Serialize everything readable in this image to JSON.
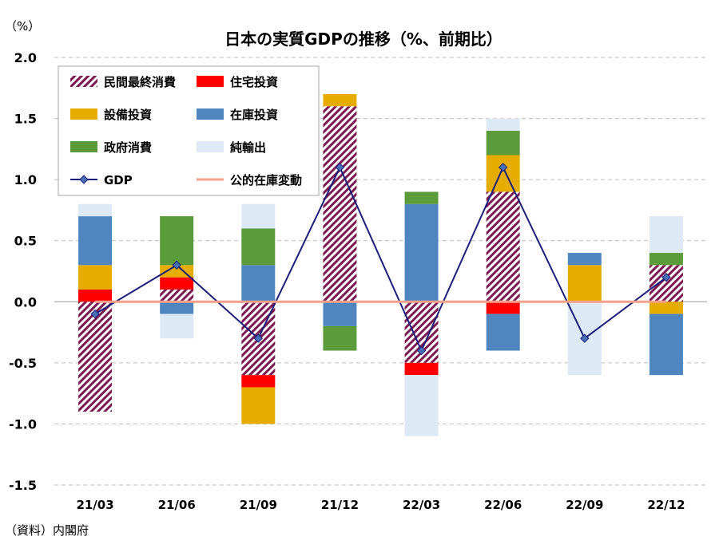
{
  "chart_data": {
    "type": "bar",
    "title": "日本の実質GDPの推移（%、前期比）",
    "yunit": "（%）",
    "source": "（資料）内閣府",
    "ylim": [
      -1.5,
      2.0
    ],
    "yticks": [
      2.0,
      1.5,
      1.0,
      0.5,
      0.0,
      -0.5,
      -1.0,
      -1.5
    ],
    "ytick_labels": [
      "2.0",
      "1.5",
      "1.0",
      "0.5",
      "0.0",
      "-0.5",
      "-1.0",
      "-1.5"
    ],
    "categories": [
      "21/03",
      "21/06",
      "21/09",
      "21/12",
      "22/03",
      "22/06",
      "22/09",
      "22/12"
    ],
    "series": [
      {
        "name": "民間最終消費",
        "type": "stacked-bar",
        "style": "hatch",
        "color": "#7b1a52",
        "values": [
          -0.9,
          0.1,
          -0.6,
          1.6,
          -0.5,
          0.9,
          0.0,
          0.3
        ]
      },
      {
        "name": "住宅投資",
        "type": "stacked-bar",
        "color": "#ff0000",
        "values": [
          0.1,
          0.1,
          -0.1,
          0.0,
          -0.1,
          -0.1,
          0.0,
          0.0
        ]
      },
      {
        "name": "設備投資",
        "type": "stacked-bar",
        "color": "#e6ad00",
        "values": [
          0.2,
          0.1,
          -0.3,
          0.1,
          0.0,
          0.3,
          0.3,
          -0.1
        ]
      },
      {
        "name": "在庫投資",
        "type": "stacked-bar",
        "color": "#4f86bf",
        "values": [
          0.4,
          -0.1,
          0.3,
          -0.2,
          0.8,
          -0.3,
          0.1,
          -0.5
        ]
      },
      {
        "name": "政府消費",
        "type": "stacked-bar",
        "color": "#5b9b3a",
        "values": [
          0.0,
          0.4,
          0.3,
          -0.2,
          0.1,
          0.2,
          0.0,
          0.1
        ]
      },
      {
        "name": "純輸出",
        "type": "stacked-bar",
        "color": "#dde9f5",
        "values": [
          0.1,
          -0.2,
          0.2,
          0.0,
          -0.5,
          0.1,
          -0.6,
          0.3
        ]
      },
      {
        "name": "GDP",
        "type": "line",
        "color": "#1c1f7a",
        "values": [
          -0.1,
          0.3,
          -0.3,
          1.1,
          -0.4,
          1.1,
          -0.3,
          0.2
        ]
      },
      {
        "name": "公的在庫変動",
        "type": "line",
        "color": "#f4a08a",
        "values": [
          0.0,
          0.0,
          0.0,
          0.0,
          0.0,
          0.0,
          0.0,
          0.0
        ]
      }
    ],
    "legend_position": "top-left",
    "grid": true
  }
}
